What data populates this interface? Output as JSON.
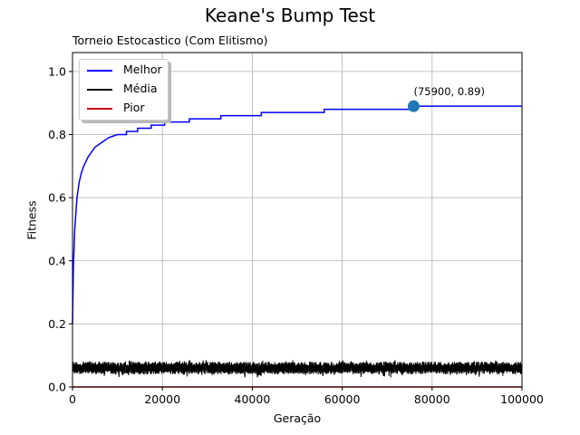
{
  "chart_data": {
    "type": "line",
    "title": "Keane's Bump Test",
    "subtitle": "Torneio Estocastico (Com Elitismo)",
    "xlabel": "Geração",
    "ylabel": "Fitness",
    "xlim": [
      0,
      100000
    ],
    "ylim": [
      0,
      1.06
    ],
    "x_ticks": [
      "0",
      "20000",
      "40000",
      "60000",
      "80000",
      "100000"
    ],
    "y_ticks": [
      "0.0",
      "0.2",
      "0.4",
      "0.6",
      "0.8",
      "1.0"
    ],
    "grid": true,
    "legend_position": "top-left",
    "series": [
      {
        "name": "Melhor",
        "color": "#0000ff",
        "x": [
          0,
          200,
          500,
          1000,
          1500,
          2000,
          2500,
          3000,
          3500,
          4000,
          4500,
          5000,
          6000,
          7000,
          8000,
          9000,
          10000,
          12000,
          14500,
          17500,
          20500,
          26000,
          33000,
          42000,
          56000,
          75900,
          100000
        ],
        "y": [
          0.2,
          0.38,
          0.5,
          0.6,
          0.65,
          0.68,
          0.7,
          0.715,
          0.73,
          0.74,
          0.75,
          0.76,
          0.77,
          0.78,
          0.79,
          0.795,
          0.8,
          0.81,
          0.82,
          0.83,
          0.84,
          0.85,
          0.86,
          0.87,
          0.88,
          0.89,
          0.89
        ]
      },
      {
        "name": "Média",
        "color": "#000000",
        "x": [
          0,
          100000
        ],
        "y_band": [
          0.03,
          0.085
        ],
        "y_typical": 0.06
      },
      {
        "name": "Pior",
        "color": "#cc0000",
        "x": [
          0,
          100000
        ],
        "y": [
          0.0,
          0.0
        ]
      }
    ],
    "annotation": {
      "text": "(75900, 0.89)",
      "x": 75900,
      "y": 0.89,
      "marker_color": "#1f77b4"
    }
  }
}
